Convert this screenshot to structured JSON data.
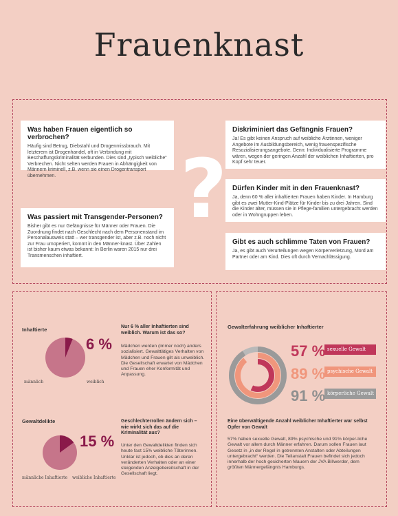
{
  "title": "Frauenknast",
  "cards": [
    {
      "heading": "Was haben Frauen eigentlich so verbrochen?",
      "text": "Häufig sind Betrug, Diebstahl und Drogenmissbrauch. Mit letzterem ist Drogenhandel, oft in Verbindung mit Beschaffungskriminalität verbunden. Dies sind „typisch weibliche“ Verbrechen. Nicht selten werden Frauen in Abhängigkeit von Männern kriminell, z.B. wenn sie einen Drogentransport übernehmen."
    },
    {
      "heading": "Was passiert mit Transgender-Personen?",
      "text": "Bisher gibt es nur Gefängnisse für Männer oder Frauen. Die Zuordnung findet nach Geschlecht nach dem Personenstand im Personalausweis statt – wer transgender ist, aber z.B. noch nicht zur Frau umoperiert, kommt in den Männer-knast. Über Zahlen ist bisher kaum etwas bekannt: In Berlin waren 2015 nur drei Transmenschen inhaftiert."
    },
    {
      "heading": "Diskriminiert das Gefängnis Frauen?",
      "text": "Ja! Es gibt keinen Anspruch auf weibliche Ärztinnen, weniger Angebote im Ausbildungsbereich, wenig frauenspezifische Resozialisierungsangebote. Denn: Individualisierte Programme wären, wegen der geringen Anzahl der weiblichen Inhaftierten, pro Kopf sehr teuer."
    },
    {
      "heading": "Dürfen Kinder mit in den Frauenknast?",
      "text": "Ja, denn 60 % aller inhaftierten Frauen haben Kinder. In Hamburg gibt es zwei Mutter-Kind-Plätze für Kinder bis zu drei Jahren. Sind die Kinder älter, müssen sie in Pflege-familien untergebracht werden oder in  Wohngruppen leben."
    },
    {
      "heading": "Gibt es auch schlimme Taten von Frauen?",
      "text": "Ja, es gibt auch Verurteilungen wegen Körperverletzung, Mord am Partner oder am Kind. Dies oft durch Vernachlässigung."
    }
  ],
  "stats": {
    "inhaftierte": {
      "label": "Inhaftierte",
      "male_label": "männlich",
      "female_label": "weiblich",
      "percent_text": "6 %",
      "share": 0.06,
      "question": "Nur 6 % aller Inhaftierten sind weiblich. Warum ist das so?",
      "answer": "Mädchen werden (immer noch) anders sozialisiert. Gewalttätiges Verhalten von Mädchen und Frauen gilt als unweiblich. Die Gesellschaft erwartet von Mädchen und Frauen eher Konformität und Anpassung."
    },
    "gewaltdelikte": {
      "label": "Gewaltdelikte",
      "male_label": "männliche Inhaftierte",
      "female_label": "weibliche Inhaftierte",
      "percent_text": "15 %",
      "share": 0.15,
      "question": "Geschlechterrollen ändern sich – wie wirkt sich das auf die Kriminalität aus?",
      "answer": "Unter den Gewaltdelikten finden sich heute fast 15% weibliche Täterinnen. Unklar ist jedoch, ob dies an deren veränderten Verhalten oder an einer steigenden Anzeigebereitschaft in der Gesellschaft liegt."
    }
  },
  "gewalt": {
    "title": "Gewalterfahrung weiblicher Inhaftierter",
    "items": [
      {
        "percent_text": "57 %",
        "value": 57,
        "label": "sexuelle Gewalt",
        "color": "#c0375a"
      },
      {
        "percent_text": "89 %",
        "value": 89,
        "label": "psychische Gewalt",
        "color": "#f0967c"
      },
      {
        "percent_text": "91 %",
        "value": 91,
        "label": "körperliche Gewalt",
        "color": "#9a9a9a"
      }
    ],
    "question": "Eine überwältigende Anzahl weiblicher Inhaftierter war selbst Opfer von Gewalt",
    "answer": "57% haben sexuelle Gewalt, 89% psychische und 91% körper-liche Gewalt vor allem durch Männer erfahren. Darum sollen Frauen laut Gesetz in „in der Regel in getrennten Anstalten oder Abteilungen untergebracht“ werden. Die Teilanstalt Frauen befindet sich jedoch innerhalb der hoch gesicherten Mauern der JVA Billwerder, dem größten Männergefängnis Hamburgs."
  },
  "colors": {
    "female": "#8a1a4a",
    "male": "#c6758a",
    "accent": "#b5485f"
  }
}
